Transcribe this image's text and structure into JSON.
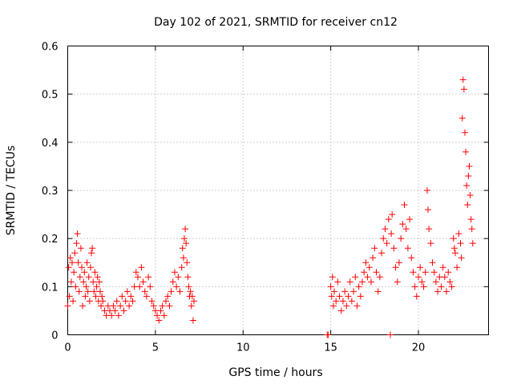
{
  "chart_data": {
    "type": "scatter",
    "title": "Day 102 of 2021, SRMTID for receiver cn12",
    "xlabel": "GPS time / hours",
    "ylabel": "SRMTID / TECUs",
    "xlim": [
      0,
      24
    ],
    "ylim": [
      0,
      0.6
    ],
    "xticks": [
      0,
      5,
      10,
      15,
      20
    ],
    "xtick_labels": [
      "0",
      "5",
      "10",
      "15",
      "20"
    ],
    "yticks": [
      0,
      0.1,
      0.2,
      0.3,
      0.4,
      0.5,
      0.6
    ],
    "ytick_labels": [
      "0",
      "0.1",
      "0.2",
      "0.3",
      "0.4",
      "0.5",
      "0.6"
    ],
    "grid": true,
    "marker": "+",
    "color": "#ff0000",
    "series": [
      {
        "name": "SRMTID",
        "points": [
          [
            0.0,
            0.06
          ],
          [
            0.05,
            0.14
          ],
          [
            0.1,
            0.08
          ],
          [
            0.15,
            0.16
          ],
          [
            0.2,
            0.11
          ],
          [
            0.25,
            0.15
          ],
          [
            0.3,
            0.07
          ],
          [
            0.35,
            0.13
          ],
          [
            0.4,
            0.17
          ],
          [
            0.45,
            0.1
          ],
          [
            0.5,
            0.19
          ],
          [
            0.55,
            0.21
          ],
          [
            0.6,
            0.15
          ],
          [
            0.65,
            0.09
          ],
          [
            0.7,
            0.12
          ],
          [
            0.75,
            0.18
          ],
          [
            0.8,
            0.14
          ],
          [
            0.85,
            0.06
          ],
          [
            0.9,
            0.11
          ],
          [
            0.95,
            0.13
          ],
          [
            1.0,
            0.08
          ],
          [
            1.05,
            0.1
          ],
          [
            1.1,
            0.15
          ],
          [
            1.15,
            0.09
          ],
          [
            1.2,
            0.12
          ],
          [
            1.25,
            0.07
          ],
          [
            1.3,
            0.14
          ],
          [
            1.35,
            0.17
          ],
          [
            1.4,
            0.18
          ],
          [
            1.45,
            0.11
          ],
          [
            1.5,
            0.09
          ],
          [
            1.55,
            0.13
          ],
          [
            1.6,
            0.08
          ],
          [
            1.65,
            0.1
          ],
          [
            1.7,
            0.12
          ],
          [
            1.75,
            0.07
          ],
          [
            1.8,
            0.11
          ],
          [
            1.85,
            0.09
          ],
          [
            1.9,
            0.06
          ],
          [
            1.95,
            0.08
          ],
          [
            2.0,
            0.07
          ],
          [
            2.1,
            0.05
          ],
          [
            2.2,
            0.04
          ],
          [
            2.3,
            0.06
          ],
          [
            2.4,
            0.05
          ],
          [
            2.5,
            0.04
          ],
          [
            2.6,
            0.06
          ],
          [
            2.7,
            0.05
          ],
          [
            2.8,
            0.07
          ],
          [
            2.9,
            0.04
          ],
          [
            3.0,
            0.06
          ],
          [
            3.1,
            0.08
          ],
          [
            3.2,
            0.05
          ],
          [
            3.3,
            0.07
          ],
          [
            3.4,
            0.09
          ],
          [
            3.5,
            0.06
          ],
          [
            3.6,
            0.08
          ],
          [
            3.7,
            0.07
          ],
          [
            3.8,
            0.1
          ],
          [
            3.9,
            0.13
          ],
          [
            4.0,
            0.12
          ],
          [
            4.1,
            0.1
          ],
          [
            4.2,
            0.14
          ],
          [
            4.3,
            0.11
          ],
          [
            4.4,
            0.09
          ],
          [
            4.5,
            0.08
          ],
          [
            4.6,
            0.12
          ],
          [
            4.7,
            0.1
          ],
          [
            4.8,
            0.07
          ],
          [
            4.9,
            0.06
          ],
          [
            5.0,
            0.05
          ],
          [
            5.1,
            0.04
          ],
          [
            5.2,
            0.03
          ],
          [
            5.3,
            0.05
          ],
          [
            5.4,
            0.06
          ],
          [
            5.5,
            0.04
          ],
          [
            5.6,
            0.07
          ],
          [
            5.7,
            0.08
          ],
          [
            5.8,
            0.06
          ],
          [
            5.9,
            0.09
          ],
          [
            6.0,
            0.11
          ],
          [
            6.1,
            0.13
          ],
          [
            6.2,
            0.1
          ],
          [
            6.3,
            0.12
          ],
          [
            6.4,
            0.09
          ],
          [
            6.5,
            0.14
          ],
          [
            6.55,
            0.18
          ],
          [
            6.6,
            0.16
          ],
          [
            6.65,
            0.2
          ],
          [
            6.7,
            0.22
          ],
          [
            6.75,
            0.19
          ],
          [
            6.8,
            0.15
          ],
          [
            6.85,
            0.12
          ],
          [
            6.9,
            0.1
          ],
          [
            6.95,
            0.08
          ],
          [
            7.0,
            0.09
          ],
          [
            7.05,
            0.06
          ],
          [
            7.1,
            0.08
          ],
          [
            7.15,
            0.03
          ],
          [
            7.2,
            0.07
          ],
          [
            14.8,
            0.0
          ],
          [
            14.85,
            0.0
          ],
          [
            15.0,
            0.1
          ],
          [
            15.05,
            0.08
          ],
          [
            15.1,
            0.12
          ],
          [
            15.15,
            0.06
          ],
          [
            15.2,
            0.09
          ],
          [
            15.3,
            0.07
          ],
          [
            15.4,
            0.11
          ],
          [
            15.5,
            0.08
          ],
          [
            15.6,
            0.05
          ],
          [
            15.7,
            0.07
          ],
          [
            15.8,
            0.09
          ],
          [
            15.9,
            0.06
          ],
          [
            16.0,
            0.08
          ],
          [
            16.1,
            0.11
          ],
          [
            16.2,
            0.07
          ],
          [
            16.3,
            0.09
          ],
          [
            16.4,
            0.12
          ],
          [
            16.5,
            0.06
          ],
          [
            16.6,
            0.1
          ],
          [
            16.7,
            0.08
          ],
          [
            16.8,
            0.11
          ],
          [
            16.9,
            0.13
          ],
          [
            17.0,
            0.15
          ],
          [
            17.1,
            0.12
          ],
          [
            17.2,
            0.14
          ],
          [
            17.3,
            0.11
          ],
          [
            17.4,
            0.16
          ],
          [
            17.5,
            0.18
          ],
          [
            17.6,
            0.13
          ],
          [
            17.7,
            0.09
          ],
          [
            17.8,
            0.12
          ],
          [
            17.9,
            0.17
          ],
          [
            18.0,
            0.2
          ],
          [
            18.1,
            0.22
          ],
          [
            18.2,
            0.19
          ],
          [
            18.3,
            0.24
          ],
          [
            18.4,
            0.0
          ],
          [
            18.45,
            0.21
          ],
          [
            18.5,
            0.25
          ],
          [
            18.6,
            0.18
          ],
          [
            18.7,
            0.14
          ],
          [
            18.8,
            0.11
          ],
          [
            18.9,
            0.15
          ],
          [
            19.0,
            0.2
          ],
          [
            19.1,
            0.23
          ],
          [
            19.2,
            0.27
          ],
          [
            19.3,
            0.22
          ],
          [
            19.4,
            0.18
          ],
          [
            19.5,
            0.24
          ],
          [
            19.6,
            0.16
          ],
          [
            19.7,
            0.13
          ],
          [
            19.8,
            0.1
          ],
          [
            19.9,
            0.08
          ],
          [
            20.0,
            0.12
          ],
          [
            20.1,
            0.14
          ],
          [
            20.2,
            0.11
          ],
          [
            20.3,
            0.1
          ],
          [
            20.4,
            0.13
          ],
          [
            20.5,
            0.3
          ],
          [
            20.55,
            0.26
          ],
          [
            20.6,
            0.22
          ],
          [
            20.7,
            0.19
          ],
          [
            20.8,
            0.15
          ],
          [
            20.9,
            0.13
          ],
          [
            21.0,
            0.11
          ],
          [
            21.1,
            0.09
          ],
          [
            21.2,
            0.12
          ],
          [
            21.3,
            0.1
          ],
          [
            21.4,
            0.14
          ],
          [
            21.5,
            0.12
          ],
          [
            21.6,
            0.09
          ],
          [
            21.7,
            0.13
          ],
          [
            21.8,
            0.11
          ],
          [
            21.9,
            0.1
          ],
          [
            22.0,
            0.2
          ],
          [
            22.05,
            0.18
          ],
          [
            22.1,
            0.17
          ],
          [
            22.2,
            0.14
          ],
          [
            22.3,
            0.21
          ],
          [
            22.4,
            0.19
          ],
          [
            22.45,
            0.16
          ],
          [
            22.5,
            0.45
          ],
          [
            22.55,
            0.53
          ],
          [
            22.6,
            0.51
          ],
          [
            22.65,
            0.42
          ],
          [
            22.7,
            0.38
          ],
          [
            22.75,
            0.31
          ],
          [
            22.8,
            0.27
          ],
          [
            22.85,
            0.33
          ],
          [
            22.9,
            0.35
          ],
          [
            22.95,
            0.29
          ],
          [
            23.0,
            0.24
          ],
          [
            23.05,
            0.22
          ],
          [
            23.1,
            0.19
          ]
        ]
      }
    ]
  }
}
